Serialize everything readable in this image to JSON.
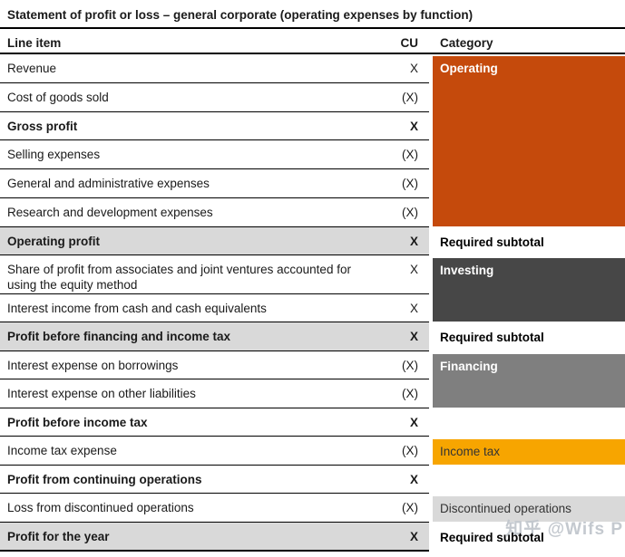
{
  "title": "Statement of profit or loss – general corporate (operating expenses by function)",
  "header": {
    "line_item": "Line item",
    "cu": "CU",
    "category": "Category"
  },
  "rows": [
    {
      "label": "Revenue",
      "cu": "X"
    },
    {
      "label": "Cost of goods sold",
      "cu": "(X)"
    },
    {
      "label": "Gross profit",
      "cu": "X"
    },
    {
      "label": "Selling expenses",
      "cu": "(X)"
    },
    {
      "label": "General and administrative expenses",
      "cu": "(X)"
    },
    {
      "label": "Research and development expenses",
      "cu": "(X)"
    },
    {
      "label": "Operating profit",
      "cu": "X"
    },
    {
      "label": "Share of profit from associates and joint ventures accounted for using the equity method",
      "cu": "X"
    },
    {
      "label": "Interest income from cash and cash equivalents",
      "cu": "X"
    },
    {
      "label": "Profit before financing and income tax",
      "cu": "X"
    },
    {
      "label": "Interest expense on borrowings",
      "cu": "(X)"
    },
    {
      "label": "Interest expense on other liabilities",
      "cu": "(X)"
    },
    {
      "label": "Profit before income tax",
      "cu": "X"
    },
    {
      "label": "Income tax expense",
      "cu": "(X)"
    },
    {
      "label": "Profit from continuing operations",
      "cu": "X"
    },
    {
      "label": "Loss from discontinued operations",
      "cu": "(X)"
    },
    {
      "label": "Profit for the year",
      "cu": "X"
    }
  ],
  "categories": {
    "operating": {
      "label": "Operating",
      "color": "#C54A0C"
    },
    "investing": {
      "label": "Investing",
      "color": "#474747"
    },
    "financing": {
      "label": "Financing",
      "color": "#7F7F7F"
    },
    "income_tax": {
      "label": "Income tax",
      "color": "#F7A500"
    },
    "discontinued": {
      "label": "Discontinued operations",
      "color": "#D9D9D9"
    },
    "required_subtotal": "Required subtotal",
    "subtotal_row_color": "#D9D9D9"
  },
  "watermark": {
    "text": "知乎 @Wifs P"
  }
}
